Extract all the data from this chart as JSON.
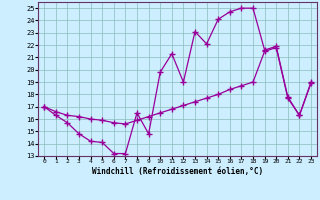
{
  "xlabel": "Windchill (Refroidissement éolien,°C)",
  "bg_color": "#cceeff",
  "line_color": "#990099",
  "marker": "+",
  "markersize": 4,
  "linewidth": 0.9,
  "xlim": [
    -0.5,
    23.5
  ],
  "ylim": [
    13,
    25.5
  ],
  "xticks": [
    0,
    1,
    2,
    3,
    4,
    5,
    6,
    7,
    8,
    9,
    10,
    11,
    12,
    13,
    14,
    15,
    16,
    17,
    18,
    19,
    20,
    21,
    22,
    23
  ],
  "yticks": [
    13,
    14,
    15,
    16,
    17,
    18,
    19,
    20,
    21,
    22,
    23,
    24,
    25
  ],
  "series1_x": [
    0,
    1,
    2,
    3,
    4,
    5,
    6,
    7,
    8,
    9,
    10,
    11,
    12,
    13,
    14,
    15,
    16,
    17,
    18,
    19,
    20,
    21,
    22,
    23
  ],
  "series1_y": [
    17.0,
    16.3,
    15.7,
    14.8,
    14.2,
    14.1,
    13.2,
    13.2,
    16.5,
    14.8,
    19.8,
    21.3,
    19.0,
    23.1,
    22.1,
    24.1,
    24.7,
    25.0,
    25.0,
    21.6,
    21.9,
    17.8,
    16.3,
    19.0
  ],
  "series2_x": [
    0,
    1,
    2,
    3,
    4,
    5,
    6,
    7,
    8,
    9,
    10,
    11,
    12,
    13,
    14,
    15,
    16,
    17,
    18,
    19,
    20,
    21,
    22,
    23
  ],
  "series2_y": [
    17.0,
    16.6,
    16.3,
    16.2,
    16.0,
    15.9,
    15.7,
    15.6,
    15.9,
    16.2,
    16.5,
    16.8,
    17.1,
    17.4,
    17.7,
    18.0,
    18.4,
    18.7,
    19.0,
    21.5,
    21.8,
    17.7,
    16.3,
    18.9
  ]
}
